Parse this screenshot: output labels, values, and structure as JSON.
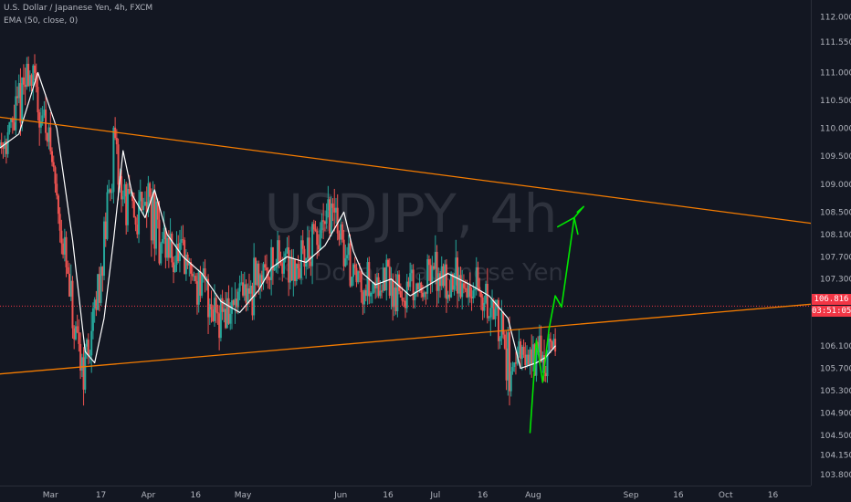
{
  "header": {
    "symbol_line": "U.S. Dollar / Japanese Yen, 4h, FXCM",
    "indicator_line": "EMA (50, close, 0)"
  },
  "watermark": {
    "ticker": "USDJPY, 4h",
    "name": "U.S. Dollar / Japanese Yen"
  },
  "price_axis": {
    "current_price": "106.816",
    "countdown": "03:51:05"
  },
  "colors": {
    "background": "#131722",
    "up_candle": "#26a69a",
    "down_candle": "#ef5350",
    "ema": "#ffffff",
    "trendline": "#f57c00",
    "projection": "#00e600",
    "current_price": "#f23645"
  },
  "chart_data": {
    "type": "line",
    "title": "U.S. Dollar / Japanese Yen, 4h, FXCM",
    "y_ticks": [
      112.0,
      111.55,
      111.0,
      110.5,
      110.0,
      109.5,
      109.0,
      108.5,
      108.1,
      107.7,
      107.3,
      106.1,
      105.7,
      105.3,
      104.9,
      104.5,
      104.15,
      103.8
    ],
    "y_tick_labels": [
      "112.000",
      "111.550",
      "111.000",
      "110.500",
      "110.000",
      "109.500",
      "109.000",
      "108.500",
      "108.100",
      "107.700",
      "107.300",
      "106.100",
      "105.700",
      "105.300",
      "104.900",
      "104.500",
      "104.150",
      "103.800"
    ],
    "ylim": [
      103.6,
      112.3
    ],
    "x_tick_labels": [
      "Mar",
      "17",
      "Apr",
      "16",
      "May",
      "Jun",
      "16",
      "Jul",
      "16",
      "Aug",
      "Sep",
      "16",
      "Oct",
      "16"
    ],
    "x_tick_dates": [
      "2020-03-01",
      "2020-03-17",
      "2020-04-01",
      "2020-04-16",
      "2020-05-01",
      "2020-06-01",
      "2020-06-16",
      "2020-07-01",
      "2020-07-16",
      "2020-08-01",
      "2020-09-01",
      "2020-09-16",
      "2020-10-01",
      "2020-10-16"
    ],
    "xlim": [
      "2020-02-14",
      "2020-10-28"
    ],
    "series": [
      {
        "name": "EMA (50, close, 0)",
        "x": [
          "2020-02-14",
          "2020-02-20",
          "2020-02-26",
          "2020-03-03",
          "2020-03-08",
          "2020-03-12",
          "2020-03-15",
          "2020-03-18",
          "2020-03-21",
          "2020-03-24",
          "2020-03-27",
          "2020-03-31",
          "2020-04-03",
          "2020-04-07",
          "2020-04-12",
          "2020-04-18",
          "2020-04-24",
          "2020-04-30",
          "2020-05-06",
          "2020-05-10",
          "2020-05-15",
          "2020-05-21",
          "2020-05-27",
          "2020-06-02",
          "2020-06-05",
          "2020-06-08",
          "2020-06-12",
          "2020-06-17",
          "2020-06-23",
          "2020-06-29",
          "2020-07-05",
          "2020-07-12",
          "2020-07-18",
          "2020-07-24",
          "2020-07-28",
          "2020-08-02",
          "2020-08-05",
          "2020-08-08"
        ],
        "values": [
          109.65,
          109.9,
          111.0,
          110.0,
          108.0,
          106.0,
          105.8,
          106.6,
          108.0,
          109.6,
          108.8,
          108.4,
          108.9,
          108.1,
          107.7,
          107.4,
          106.9,
          106.7,
          107.1,
          107.5,
          107.7,
          107.6,
          107.9,
          108.5,
          107.8,
          107.4,
          107.2,
          107.3,
          107.0,
          107.2,
          107.4,
          107.2,
          107.0,
          106.6,
          105.7,
          105.8,
          105.9,
          106.1
        ]
      },
      {
        "name": "Upper trendline",
        "x": [
          "2020-02-14",
          "2020-10-28"
        ],
        "values": [
          110.2,
          108.3
        ]
      },
      {
        "name": "Lower trendline",
        "x": [
          "2020-02-14",
          "2020-10-28"
        ],
        "values": [
          105.6,
          106.85
        ]
      },
      {
        "name": "Projection",
        "x": [
          "2020-07-31",
          "2020-08-02",
          "2020-08-04",
          "2020-08-06",
          "2020-08-08",
          "2020-08-10",
          "2020-08-14",
          "2020-08-17",
          "2020-08-15"
        ],
        "values": [
          104.55,
          106.2,
          105.45,
          106.4,
          107.0,
          106.8,
          108.4,
          108.6,
          108.5
        ]
      }
    ],
    "grid": false,
    "legend": "top-left"
  }
}
